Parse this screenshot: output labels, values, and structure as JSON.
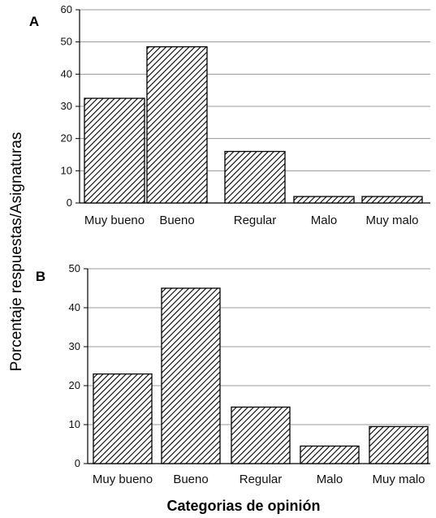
{
  "chart_data": [
    {
      "type": "bar",
      "panel_label": "A",
      "categories": [
        "Muy bueno",
        "Bueno",
        "Regular",
        "Malo",
        "Muy malo"
      ],
      "values": [
        32.5,
        48.5,
        16,
        2,
        2
      ],
      "ylim": [
        0,
        60
      ],
      "yticks": [
        0,
        10,
        20,
        30,
        40,
        50,
        60
      ],
      "grid": true,
      "bar_pattern": "diagonal-hatch"
    },
    {
      "type": "bar",
      "panel_label": "B",
      "categories": [
        "Muy bueno",
        "Bueno",
        "Regular",
        "Malo",
        "Muy malo"
      ],
      "values": [
        23,
        45,
        14.5,
        4.5,
        9.5
      ],
      "ylim": [
        0,
        50
      ],
      "yticks": [
        0,
        10,
        20,
        30,
        40,
        50
      ],
      "grid": true,
      "bar_pattern": "diagonal-hatch"
    }
  ],
  "ylabel": "Porcentaje respuestas/Asignaturas",
  "xlabel": "Categorias de opinión"
}
